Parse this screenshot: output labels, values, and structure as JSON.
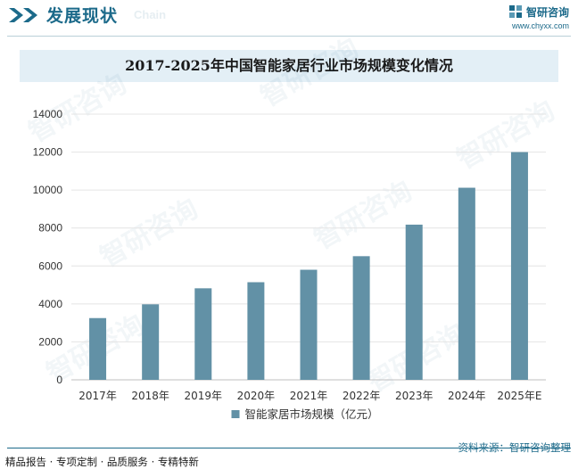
{
  "header": {
    "section_title": "发展现状",
    "section_subtitle": "Chain",
    "brand_name": "智研咨询",
    "brand_url": "www.chyxx.com"
  },
  "colors": {
    "brand": "#1c6a8a",
    "bar": "#6291a6",
    "title_band": "#e3eff6"
  },
  "watermark": "智研咨询",
  "chart_data": {
    "type": "bar",
    "title": "2017-2025年中国智能家居行业市场规模变化情况",
    "categories": [
      "2017年",
      "2018年",
      "2019年",
      "2020年",
      "2021年",
      "2022年",
      "2023年",
      "2024年",
      "2025年E"
    ],
    "series": [
      {
        "name": "智能家居市场规模（亿元）",
        "values": [
          3254,
          3979,
          4823,
          5144,
          5800,
          6515,
          8177,
          10122,
          12000
        ]
      }
    ],
    "ylim": [
      0,
      14000
    ],
    "yticks": [
      0,
      2000,
      4000,
      6000,
      8000,
      10000,
      12000,
      14000
    ],
    "grid": true,
    "legend_position": "bottom"
  },
  "footer": {
    "left_text": "精品报告 · 专项定制 · 品质服务 · 专精特新",
    "right_text": "资料来源：智研咨询整理"
  }
}
